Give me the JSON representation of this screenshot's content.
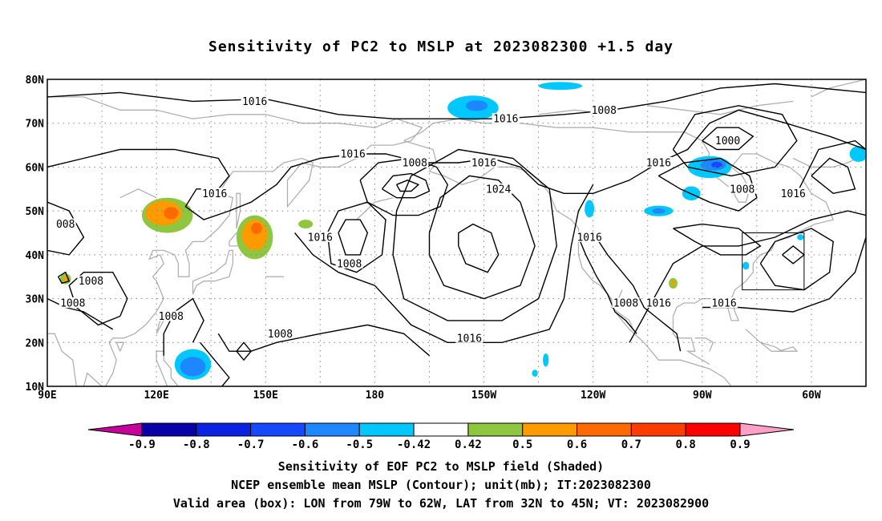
{
  "title": "Sensitivity of PC2 to MSLP at 2023082300 +1.5 day",
  "map": {
    "lat_labels": [
      "80N",
      "70N",
      "60N",
      "50N",
      "40N",
      "30N",
      "20N",
      "10N"
    ],
    "lon_labels": [
      "90E",
      "120E",
      "150E",
      "180",
      "150W",
      "120W",
      "90W",
      "60W"
    ],
    "extent": {
      "lon_west": "90E",
      "lon_east": "45W",
      "lat_south": "10N",
      "lat_north": "80N"
    },
    "contour_interval_mb": 8,
    "contour_labels": [
      {
        "text": "1016",
        "lon": 147,
        "lat": 75
      },
      {
        "text": "1016",
        "lon": 216,
        "lat": 71
      },
      {
        "text": "1008",
        "lon": 243,
        "lat": 73
      },
      {
        "text": "1016",
        "lon": 174,
        "lat": 63
      },
      {
        "text": "1008",
        "lon": 191,
        "lat": 61
      },
      {
        "text": "1016",
        "lon": 210,
        "lat": 61
      },
      {
        "text": "1024",
        "lon": 214,
        "lat": 55
      },
      {
        "text": "1016",
        "lon": 258,
        "lat": 61
      },
      {
        "text": "1000",
        "lon": 277,
        "lat": 66
      },
      {
        "text": "1016",
        "lon": 136,
        "lat": 54
      },
      {
        "text": "1008",
        "lon": 281,
        "lat": 55
      },
      {
        "text": "1016",
        "lon": 295,
        "lat": 54
      },
      {
        "text": "1016",
        "lon": 165,
        "lat": 44
      },
      {
        "text": "1008",
        "lon": 173,
        "lat": 38
      },
      {
        "text": "1016",
        "lon": 239,
        "lat": 44
      },
      {
        "text": "008",
        "lon": 95,
        "lat": 47
      },
      {
        "text": "1008",
        "lon": 102,
        "lat": 34
      },
      {
        "text": "1008",
        "lon": 97,
        "lat": 29
      },
      {
        "text": "1008",
        "lon": 124,
        "lat": 26
      },
      {
        "text": "1008",
        "lon": 154,
        "lat": 22
      },
      {
        "text": "1016",
        "lon": 206,
        "lat": 21
      },
      {
        "text": "1008",
        "lon": 249,
        "lat": 29
      },
      {
        "text": "1016",
        "lon": 258,
        "lat": 29
      },
      {
        "text": "1016",
        "lon": 276,
        "lat": 29
      }
    ],
    "highs_lows": [
      {
        "type": "low",
        "lon": 191,
        "lat": 56
      },
      {
        "type": "high",
        "lon": 209,
        "lat": 42
      },
      {
        "type": "low",
        "lon": 173,
        "lat": 44
      },
      {
        "type": "low",
        "lon": 144,
        "lat": 18
      },
      {
        "type": "low",
        "lon": 279,
        "lat": 66
      },
      {
        "type": "low",
        "lon": 295,
        "lat": 40
      }
    ],
    "valid_box": {
      "lon_west": "79W",
      "lon_east": "62W",
      "lat_south": "32N",
      "lat_north": "45N"
    },
    "shaded_regions": [
      {
        "level": "0.5",
        "lon": 123,
        "lat": 49,
        "rx": 7,
        "ry": 4
      },
      {
        "level": "0.6",
        "lon": 122,
        "lat": 49.5,
        "rx": 5,
        "ry": 2.8
      },
      {
        "level": "0.7",
        "lon": 124,
        "lat": 49.5,
        "rx": 2,
        "ry": 1.4
      },
      {
        "level": "0.5",
        "lon": 147,
        "lat": 44,
        "rx": 5,
        "ry": 5
      },
      {
        "level": "0.6",
        "lon": 147,
        "lat": 44.5,
        "rx": 3.5,
        "ry": 3.5
      },
      {
        "level": "0.7",
        "lon": 147.5,
        "lat": 46,
        "rx": 1.5,
        "ry": 1.3
      },
      {
        "level": "0.5",
        "lon": 161,
        "lat": 47,
        "rx": 2,
        "ry": 1
      },
      {
        "level": "0.5",
        "lon": 95,
        "lat": 34.5,
        "rx": 1.5,
        "ry": 1.2
      },
      {
        "level": "0.6",
        "lon": 95,
        "lat": 34.5,
        "rx": 0.7,
        "ry": 0.6
      },
      {
        "level": "0.5",
        "lon": 262,
        "lat": 33.5,
        "rx": 1.2,
        "ry": 1.2
      },
      {
        "level": "0.6",
        "lon": 262,
        "lat": 33.5,
        "rx": 0.6,
        "ry": 0.6
      },
      {
        "level": "-0.5",
        "lon": 207,
        "lat": 73.5,
        "rx": 7,
        "ry": 2.8
      },
      {
        "level": "-0.6",
        "lon": 208,
        "lat": 74,
        "rx": 3,
        "ry": 1.2
      },
      {
        "level": "-0.5",
        "lon": 231,
        "lat": 78.5,
        "rx": 6,
        "ry": 0.9
      },
      {
        "level": "-0.5",
        "lon": 272,
        "lat": 60,
        "rx": 6,
        "ry": 2.5
      },
      {
        "level": "-0.6",
        "lon": 273,
        "lat": 60.5,
        "rx": 3.5,
        "ry": 1.3
      },
      {
        "level": "-0.7",
        "lon": 274,
        "lat": 60.5,
        "rx": 1.5,
        "ry": 0.7
      },
      {
        "level": "-0.5",
        "lon": 267,
        "lat": 54,
        "rx": 2.5,
        "ry": 1.6
      },
      {
        "level": "-0.5",
        "lon": 258,
        "lat": 50,
        "rx": 4,
        "ry": 1.2
      },
      {
        "level": "-0.6",
        "lon": 258,
        "lat": 50,
        "rx": 1.8,
        "ry": 0.6
      },
      {
        "level": "-0.5",
        "lon": 239,
        "lat": 50.5,
        "rx": 1.3,
        "ry": 2
      },
      {
        "level": "-0.5",
        "lon": 130,
        "lat": 15,
        "rx": 5,
        "ry": 3.5
      },
      {
        "level": "-0.6",
        "lon": 130,
        "lat": 14.5,
        "rx": 3.5,
        "ry": 2.2
      },
      {
        "level": "-0.5",
        "lon": 313,
        "lat": 63,
        "rx": 2.5,
        "ry": 1.8
      },
      {
        "level": "-0.5",
        "lon": 227,
        "lat": 16,
        "rx": 0.8,
        "ry": 1.5
      },
      {
        "level": "-0.5",
        "lon": 224,
        "lat": 13,
        "rx": 0.8,
        "ry": 0.8
      },
      {
        "level": "-0.5",
        "lon": 282,
        "lat": 37.5,
        "rx": 0.9,
        "ry": 0.9
      },
      {
        "level": "-0.5",
        "lon": 297,
        "lat": 44,
        "rx": 0.9,
        "ry": 0.7
      }
    ]
  },
  "colorbar": {
    "labels": [
      "-0.9",
      "-0.8",
      "-0.7",
      "-0.6",
      "-0.5",
      "-0.42",
      "0.42",
      "0.5",
      "0.6",
      "0.7",
      "0.8",
      "0.9"
    ],
    "colors": {
      "lt_-0.9": "#c8009c",
      "-0.9_-0.8": "#0a00a8",
      "-0.8_-0.7": "#0b22e0",
      "-0.7_-0.6": "#1648ff",
      "-0.6_-0.5": "#1e86ff",
      "-0.5_-0.42": "#00c8ff",
      "-0.42_0.42": "#ffffff",
      "0.42_0.5": "#8ec63f",
      "0.5_0.6": "#ff9a00",
      "0.6_0.7": "#ff6a00",
      "0.7_0.8": "#ff3c00",
      "0.8_0.9": "#ff0000",
      "gt_0.9": "#ffa0c8"
    }
  },
  "footer": {
    "line1": "Sensitivity of EOF PC2 to MSLP field (Shaded)",
    "line2": "NCEP ensemble mean MSLP (Contour); unit(mb); IT:2023082300",
    "line3": "Valid area (box): LON from 79W to 62W, LAT from 32N to 45N; VT: 2023082900"
  }
}
